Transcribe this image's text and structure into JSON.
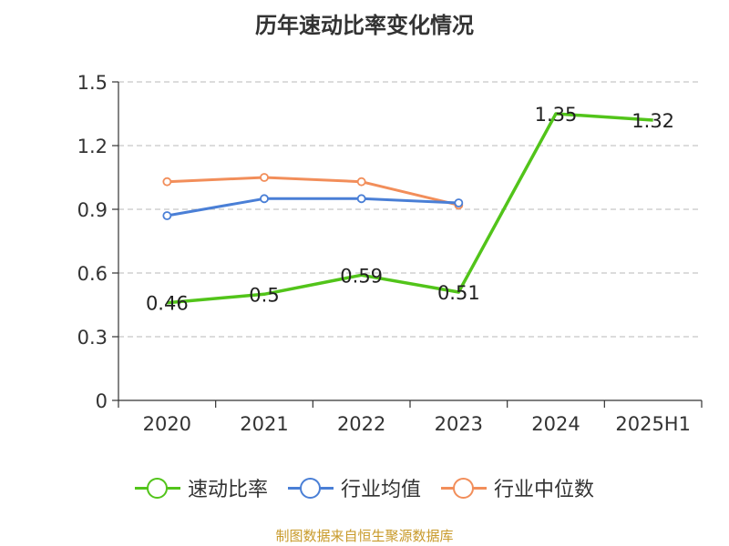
{
  "chart_data": {
    "type": "line",
    "title": "历年速动比率变化情况",
    "categories": [
      "2020",
      "2021",
      "2022",
      "2023",
      "2024",
      "2025H1"
    ],
    "y_ticks": [
      "0",
      "0.3",
      "0.6",
      "0.9",
      "1.2",
      "1.5"
    ],
    "ylim": [
      0,
      1.5
    ],
    "grid": true,
    "legend_position": "bottom",
    "series": [
      {
        "name": "速动比率",
        "color": "#52c41a",
        "values": [
          0.46,
          0.5,
          0.59,
          0.51,
          1.35,
          1.32
        ],
        "labels": [
          "0.46",
          "0.5",
          "0.59",
          "0.51",
          "1.35",
          "1.32"
        ]
      },
      {
        "name": "行业均值",
        "color": "#4a7fd6",
        "values": [
          0.87,
          0.95,
          0.95,
          0.93,
          null,
          null
        ]
      },
      {
        "name": "行业中位数",
        "color": "#f28e5a",
        "values": [
          1.03,
          1.05,
          1.03,
          0.92,
          null,
          null
        ]
      }
    ]
  },
  "source": "制图数据来自恒生聚源数据库"
}
